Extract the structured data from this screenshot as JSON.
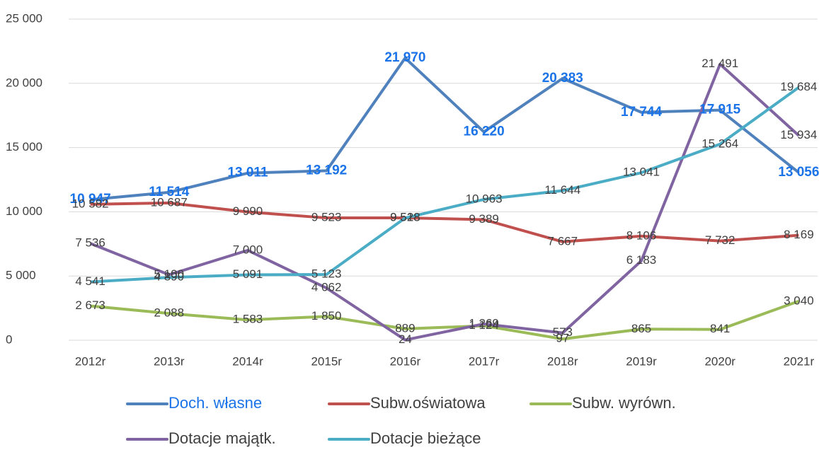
{
  "chart_data": {
    "type": "line",
    "categories": [
      "2012r",
      "2013r",
      "2014r",
      "2015r",
      "2016r",
      "2017r",
      "2018r",
      "2019r",
      "2020r",
      "2021r"
    ],
    "ylim": [
      0,
      25000
    ],
    "yticks": [
      0,
      {
        "value": 5000,
        "label": "5 000"
      },
      {
        "value": 10000,
        "label": "10 000"
      },
      {
        "value": 15000,
        "label": "15 000"
      },
      {
        "value": 20000,
        "label": "20 000"
      },
      {
        "value": 25000,
        "label": "25 000"
      }
    ],
    "grid": true,
    "series": [
      {
        "name": "Doch. własne",
        "color": "#4f81bd",
        "label_color": "#1a73e8",
        "values": [
          10947,
          11514,
          13011,
          13192,
          21970,
          16220,
          20383,
          17744,
          17915,
          13056
        ],
        "value_labels": [
          "10 947",
          "11 514",
          "13 011",
          "13 192",
          "21 970",
          "16 220",
          "20 383",
          "17 744",
          "17 915",
          "13 056"
        ]
      },
      {
        "name": "Subw.oświatowa",
        "color": "#c0504d",
        "values": [
          10582,
          10687,
          9990,
          9523,
          9528,
          9389,
          7667,
          8106,
          7732,
          8169
        ],
        "value_labels": [
          "10 582",
          "10 687",
          "9 990",
          "9 523",
          "9 528",
          "9 389",
          "7 667",
          "8 106",
          "7 732",
          "8 169"
        ]
      },
      {
        "name": "Subw. wyrówn.",
        "color": "#9bbb59",
        "values": [
          2673,
          2088,
          1583,
          1850,
          889,
          1124,
          97,
          865,
          841,
          3040
        ],
        "value_labels": [
          "2 673",
          "2 088",
          "1 583",
          "1 850",
          "889",
          "1 124",
          "97",
          "865",
          "841",
          "3 040"
        ]
      },
      {
        "name": "Dotacje majątk.",
        "color": "#8064a2",
        "values": [
          7536,
          5100,
          7000,
          4062,
          24,
          1269,
          573,
          6183,
          21491,
          15934
        ],
        "value_labels": [
          "7 536",
          "5 100",
          "7 000",
          "4 062",
          "24",
          "1 269",
          "573",
          "6 183",
          "21 491",
          "15 934"
        ]
      },
      {
        "name": "Dotacje bieżące",
        "color": "#4bacc6",
        "values": [
          4541,
          4890,
          5091,
          5123,
          9518,
          10963,
          11644,
          13041,
          15264,
          19684
        ],
        "value_labels": [
          "4 541",
          "4 890",
          "5 091",
          "5 123",
          "9 518",
          "10 963",
          "11 644",
          "13 041",
          "15 264",
          "19 684"
        ]
      }
    ]
  }
}
